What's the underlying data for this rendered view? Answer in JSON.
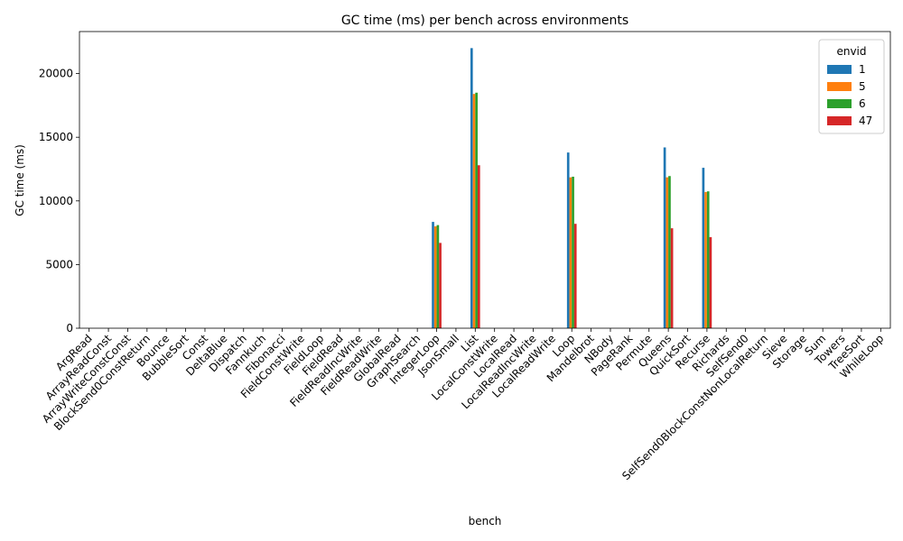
{
  "chart_data": {
    "type": "bar",
    "title": "GC time (ms) per bench across environments",
    "xlabel": "bench",
    "ylabel": "GC time (ms)",
    "ylim": [
      0,
      23300
    ],
    "yticks": [
      0,
      5000,
      10000,
      15000,
      20000
    ],
    "grid": false,
    "legend": {
      "title": "envid",
      "placement": "top-right"
    },
    "categories": [
      "ArgRead",
      "ArrayReadConst",
      "ArrayWriteConstConst",
      "BlockSend0ConstReturn",
      "Bounce",
      "BubbleSort",
      "Const",
      "DeltaBlue",
      "Dispatch",
      "Fannkuch",
      "Fibonacci",
      "FieldConstWrite",
      "FieldLoop",
      "FieldRead",
      "FieldReadIncWrite",
      "FieldReadWrite",
      "GlobalRead",
      "GraphSearch",
      "IntegerLoop",
      "JsonSmall",
      "List",
      "LocalConstWrite",
      "LocalRead",
      "LocalReadIncWrite",
      "LocalReadWrite",
      "Loop",
      "Mandelbrot",
      "NBody",
      "PageRank",
      "Permute",
      "Queens",
      "QuickSort",
      "Recurse",
      "Richards",
      "SelfSend0",
      "SelfSend0BlockConstNonLocalReturn",
      "Sieve",
      "Storage",
      "Sum",
      "Towers",
      "TreeSort",
      "WhileLoop"
    ],
    "series": [
      {
        "name": "1",
        "color": "#1f77b4",
        "values": [
          0,
          0,
          0,
          0,
          0,
          0,
          0,
          0,
          0,
          0,
          0,
          0,
          0,
          0,
          0,
          0,
          0,
          0,
          8350,
          0,
          22000,
          0,
          0,
          0,
          0,
          13800,
          0,
          0,
          0,
          0,
          14200,
          0,
          12600,
          0,
          0,
          0,
          0,
          0,
          0,
          0,
          0,
          0
        ]
      },
      {
        "name": "5",
        "color": "#ff7f0e",
        "values": [
          0,
          0,
          0,
          0,
          0,
          0,
          0,
          0,
          0,
          0,
          0,
          0,
          0,
          0,
          0,
          0,
          0,
          0,
          8000,
          0,
          18400,
          0,
          0,
          0,
          0,
          11850,
          0,
          0,
          0,
          0,
          11850,
          0,
          10700,
          0,
          0,
          0,
          0,
          0,
          0,
          0,
          0,
          0
        ]
      },
      {
        "name": "6",
        "color": "#2ca02c",
        "values": [
          0,
          0,
          0,
          0,
          0,
          0,
          0,
          0,
          0,
          0,
          0,
          0,
          0,
          0,
          0,
          0,
          0,
          0,
          8100,
          0,
          18500,
          0,
          0,
          0,
          0,
          11900,
          0,
          0,
          0,
          0,
          11950,
          0,
          10750,
          0,
          0,
          0,
          0,
          0,
          0,
          0,
          0,
          0
        ]
      },
      {
        "name": "47",
        "color": "#d62728",
        "values": [
          0,
          0,
          0,
          0,
          0,
          0,
          0,
          0,
          0,
          0,
          0,
          0,
          0,
          0,
          0,
          0,
          0,
          0,
          6700,
          0,
          12800,
          0,
          0,
          0,
          0,
          8200,
          0,
          0,
          0,
          0,
          7850,
          0,
          7150,
          0,
          0,
          0,
          0,
          0,
          0,
          0,
          0,
          0
        ]
      }
    ]
  }
}
